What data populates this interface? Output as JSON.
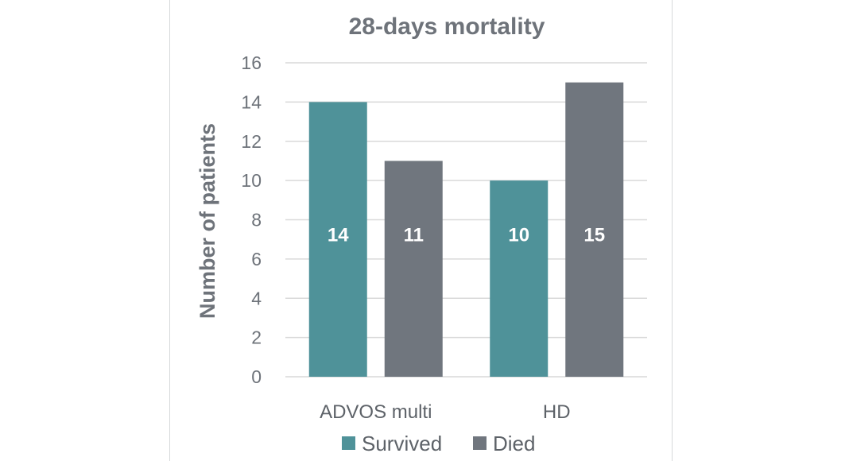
{
  "chart_data": {
    "type": "bar",
    "title": "28-days mortality",
    "xlabel": "",
    "ylabel": "Number of patients",
    "categories": [
      "ADVOS multi",
      "HD"
    ],
    "series": [
      {
        "name": "Survived",
        "values": [
          14,
          10
        ],
        "color": "#4f9299"
      },
      {
        "name": "Died",
        "values": [
          11,
          15
        ],
        "color": "#70767e"
      }
    ],
    "ylim": [
      0,
      16
    ],
    "yticks": [
      0,
      2,
      4,
      6,
      8,
      10,
      12,
      14,
      16
    ],
    "grid": true,
    "legend_position": "bottom",
    "data_labels": true
  }
}
